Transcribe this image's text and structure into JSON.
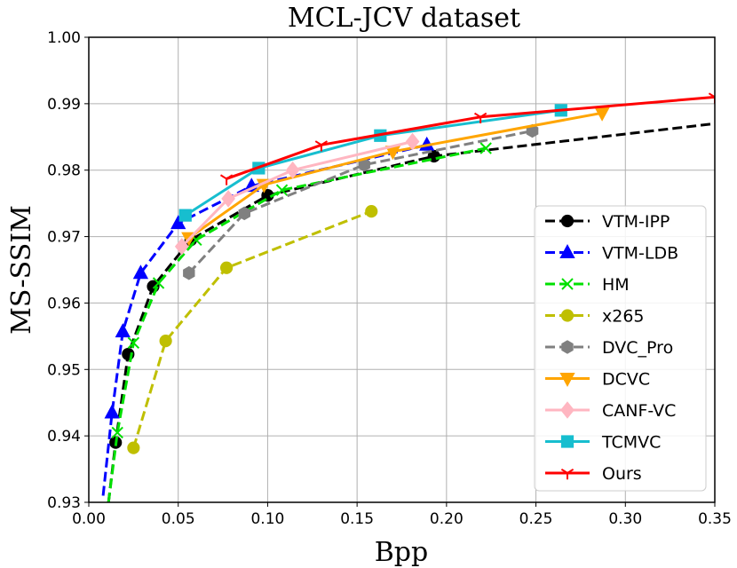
{
  "chart_data": {
    "type": "line",
    "title": "MCL-JCV dataset",
    "xlabel": "Bpp",
    "ylabel": "MS-SSIM",
    "xlim": [
      0.0,
      0.35
    ],
    "ylim": [
      0.93,
      1.0
    ],
    "grid": true,
    "legend_position": "right",
    "x_ticks": [
      "0.00",
      "0.05",
      "0.10",
      "0.15",
      "0.20",
      "0.25",
      "0.30",
      "0.35"
    ],
    "y_ticks": [
      "0.93",
      "0.94",
      "0.95",
      "0.96",
      "0.97",
      "0.98",
      "0.99",
      "1.00"
    ],
    "series": [
      {
        "name": "VTM-IPP",
        "color": "#000000",
        "dash": "dashed",
        "marker": "circle",
        "x": [
          0.011,
          0.015,
          0.022,
          0.036,
          0.057,
          0.1,
          0.193,
          0.35
        ],
        "y": [
          0.93,
          0.939,
          0.9523,
          0.9625,
          0.9695,
          0.9762,
          0.9821,
          0.987
        ],
        "marker_idx": [
          1,
          2,
          3,
          4,
          5,
          6
        ]
      },
      {
        "name": "VTM-LDB",
        "color": "#0000ff",
        "dash": "dashed",
        "marker": "triangle-up",
        "x": [
          0.008,
          0.013,
          0.019,
          0.029,
          0.05,
          0.091,
          0.189
        ],
        "y": [
          0.931,
          0.9435,
          0.9557,
          0.9645,
          0.972,
          0.9776,
          0.9838
        ],
        "marker_idx": [
          1,
          2,
          3,
          4,
          5,
          6
        ]
      },
      {
        "name": "HM",
        "color": "#00e000",
        "dash": "dashed",
        "marker": "x",
        "x": [
          0.011,
          0.016,
          0.025,
          0.039,
          0.06,
          0.108,
          0.222
        ],
        "y": [
          0.93,
          0.9405,
          0.954,
          0.963,
          0.9695,
          0.977,
          0.9833
        ],
        "marker_idx": [
          1,
          2,
          3,
          4,
          5,
          6
        ]
      },
      {
        "name": "x265",
        "color": "#bfbf00",
        "dash": "dashed",
        "marker": "circle",
        "x": [
          0.025,
          0.043,
          0.077,
          0.158
        ],
        "y": [
          0.9382,
          0.9543,
          0.9653,
          0.9738
        ],
        "marker_idx": [
          0,
          1,
          2,
          3
        ]
      },
      {
        "name": "DVC_Pro",
        "color": "#808080",
        "dash": "dashed",
        "marker": "hexagon",
        "x": [
          0.056,
          0.087,
          0.154,
          0.248
        ],
        "y": [
          0.9645,
          0.9735,
          0.9808,
          0.9859
        ],
        "marker_idx": [
          0,
          1,
          2,
          3
        ]
      },
      {
        "name": "DCVC",
        "color": "#ffa500",
        "dash": "solid",
        "marker": "triangle-down",
        "x": [
          0.056,
          0.098,
          0.17,
          0.287
        ],
        "y": [
          0.9698,
          0.9778,
          0.9828,
          0.9886
        ],
        "marker_idx": [
          0,
          1,
          2,
          3
        ]
      },
      {
        "name": "CANF-VC",
        "color": "#ffb6c1",
        "dash": "solid",
        "marker": "diamond",
        "x": [
          0.052,
          0.078,
          0.114,
          0.181
        ],
        "y": [
          0.9685,
          0.9757,
          0.98,
          0.9843
        ],
        "marker_idx": [
          0,
          1,
          2,
          3
        ]
      },
      {
        "name": "TCMVC",
        "color": "#17becf",
        "dash": "solid",
        "marker": "square",
        "x": [
          0.054,
          0.095,
          0.163,
          0.264
        ],
        "y": [
          0.9732,
          0.9803,
          0.9852,
          0.989
        ],
        "marker_idx": [
          0,
          1,
          2,
          3
        ]
      },
      {
        "name": "Ours",
        "color": "#ff0000",
        "dash": "solid",
        "marker": "tri-down",
        "x": [
          0.077,
          0.13,
          0.219,
          0.35
        ],
        "y": [
          0.9787,
          0.9838,
          0.988,
          0.991
        ],
        "marker_idx": [
          0,
          1,
          2,
          3
        ]
      }
    ]
  }
}
